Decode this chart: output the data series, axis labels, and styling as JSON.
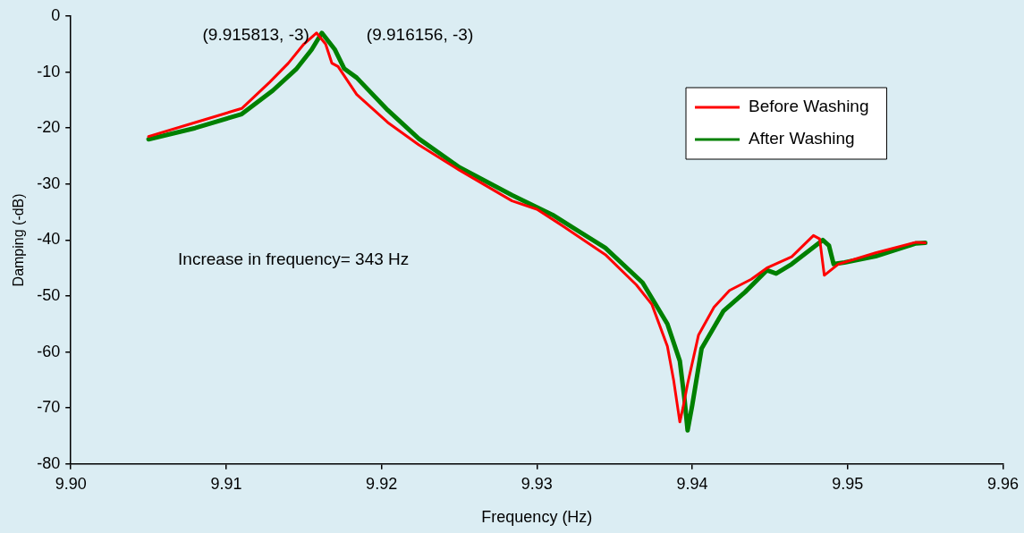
{
  "chart_data": {
    "type": "line",
    "xlabel": "Frequency (Hz)",
    "ylabel": "Damping (-dB)",
    "xlim": [
      9.9,
      9.96
    ],
    "xticks": [
      {
        "value": 9.9,
        "label": "9.90"
      },
      {
        "value": 9.91,
        "label": "9.91"
      },
      {
        "value": 9.92,
        "label": "9.92"
      },
      {
        "value": 9.93,
        "label": "9.93"
      },
      {
        "value": 9.94,
        "label": "9.94"
      },
      {
        "value": 9.95,
        "label": "9.95"
      },
      {
        "value": 9.96,
        "label": "9.96"
      }
    ],
    "ylim": [
      -80,
      0
    ],
    "yticks": [
      -80,
      -70,
      -60,
      -50,
      -40,
      -30,
      -20,
      -10,
      0
    ],
    "grid": false,
    "legend": "top right",
    "marker": "none",
    "line_style": "solid",
    "annotations": [
      {
        "text": "(9.915813, -3)",
        "x": 9.915813,
        "y": -3
      },
      {
        "text": "(9.916156, -3)",
        "x": 9.916156,
        "y": -3
      },
      "Increase in frequency= 343 Hz"
    ],
    "series": [
      {
        "name": "Before Washing",
        "color": "#ff0000",
        "x": [
          9.905,
          9.908,
          9.911,
          9.9128,
          9.914,
          9.915,
          9.915813,
          9.9164,
          9.9168,
          9.9172,
          9.9184,
          9.9204,
          9.9224,
          9.925,
          9.9284,
          9.93,
          9.9314,
          9.9344,
          9.9364,
          9.9374,
          9.9384,
          9.9388,
          9.9392,
          9.9394,
          9.9397,
          9.9404,
          9.9414,
          9.9424,
          9.9438,
          9.9448,
          9.9464,
          9.9478,
          9.9482,
          9.9485,
          9.9494,
          9.9518,
          9.9544,
          9.955
        ],
        "values": [
          -21.5,
          -19,
          -16.5,
          -11.8,
          -8.4,
          -5,
          -3,
          -5,
          -8.4,
          -9,
          -14,
          -19,
          -23,
          -27.5,
          -33,
          -34.5,
          -37,
          -42.6,
          -48,
          -51.5,
          -59,
          -65,
          -72.5,
          -70,
          -65.7,
          -57,
          -52,
          -49,
          -47,
          -45,
          -43,
          -39.2,
          -39.8,
          -46.3,
          -44.3,
          -42.3,
          -40.4,
          -40.5
        ]
      },
      {
        "name": "After Washing",
        "color": "#008000",
        "x": [
          9.905,
          9.908,
          9.911,
          9.913,
          9.9145,
          9.9155,
          9.916156,
          9.917,
          9.9176,
          9.9184,
          9.9204,
          9.9224,
          9.925,
          9.9284,
          9.931,
          9.9344,
          9.9368,
          9.9384,
          9.9392,
          9.9395,
          9.9397,
          9.94,
          9.9406,
          9.942,
          9.9434,
          9.9448,
          9.9454,
          9.9464,
          9.9484,
          9.9488,
          9.9491,
          9.9498,
          9.9518,
          9.9544,
          9.955
        ],
        "values": [
          -22,
          -20,
          -17.5,
          -13.3,
          -9.5,
          -6,
          -3,
          -6,
          -9.4,
          -11,
          -16.8,
          -21.9,
          -27,
          -32,
          -35.5,
          -41.4,
          -47.6,
          -55,
          -61.6,
          -68.4,
          -74,
          -69.5,
          -59.4,
          -52.7,
          -49.3,
          -45.4,
          -46,
          -44.3,
          -40,
          -41,
          -44.3,
          -44,
          -42.9,
          -40.6,
          -40.5
        ]
      }
    ]
  }
}
